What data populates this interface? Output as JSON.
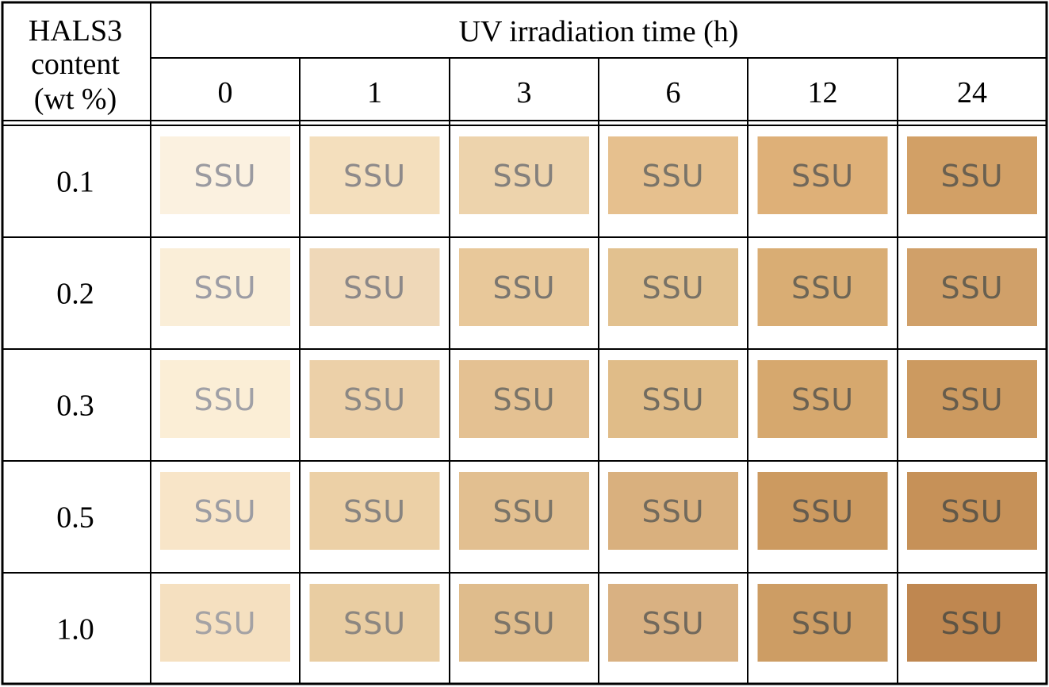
{
  "table": {
    "row_header_lines": [
      "HALS3",
      "content",
      "(wt  %)"
    ],
    "column_group_title": "UV  irradiation  time  (h)",
    "time_columns": [
      "0",
      "1",
      "3",
      "6",
      "12",
      "24"
    ],
    "rows": [
      {
        "content": "0.1",
        "samples": [
          {
            "label": "SSU",
            "color": "#fbf1e0",
            "text_color": "#9a9aa0"
          },
          {
            "label": "SSU",
            "color": "#f4dfbd",
            "text_color": "#8e8a8a"
          },
          {
            "label": "SSU",
            "color": "#edd3ac",
            "text_color": "#84807c"
          },
          {
            "label": "SSU",
            "color": "#e6c08e",
            "text_color": "#7a7468"
          },
          {
            "label": "SSU",
            "color": "#deb078",
            "text_color": "#72685a"
          },
          {
            "label": "SSU",
            "color": "#d2a066",
            "text_color": "#6a6050"
          }
        ]
      },
      {
        "content": "0.2",
        "samples": [
          {
            "label": "SSU",
            "color": "#faeed8",
            "text_color": "#9c9ca4"
          },
          {
            "label": "SSU",
            "color": "#efd8b8",
            "text_color": "#8c8888"
          },
          {
            "label": "SSU",
            "color": "#e8c89a",
            "text_color": "#7a7670"
          },
          {
            "label": "SSU",
            "color": "#e2c18f",
            "text_color": "#787266"
          },
          {
            "label": "SSU",
            "color": "#d9ad74",
            "text_color": "#6e6656"
          },
          {
            "label": "SSU",
            "color": "#d0a069",
            "text_color": "#686050"
          }
        ]
      },
      {
        "content": "0.3",
        "samples": [
          {
            "label": "SSU",
            "color": "#fbeed6",
            "text_color": "#a0a0a6"
          },
          {
            "label": "SSU",
            "color": "#ecd0a8",
            "text_color": "#8c8884"
          },
          {
            "label": "SSU",
            "color": "#e4c192",
            "text_color": "#7a7468"
          },
          {
            "label": "SSU",
            "color": "#e0bc88",
            "text_color": "#726c60"
          },
          {
            "label": "SSU",
            "color": "#d6a86e",
            "text_color": "#6c6252"
          },
          {
            "label": "SSU",
            "color": "#cc9a60",
            "text_color": "#665c4c"
          }
        ]
      },
      {
        "content": "0.5",
        "samples": [
          {
            "label": "SSU",
            "color": "#f8e5c8",
            "text_color": "#9c9ca2"
          },
          {
            "label": "SSU",
            "color": "#ecd0a6",
            "text_color": "#888480"
          },
          {
            "label": "SSU",
            "color": "#e2bf90",
            "text_color": "#7a7468"
          },
          {
            "label": "SSU",
            "color": "#d9b07e",
            "text_color": "#726a5c"
          },
          {
            "label": "SSU",
            "color": "#cc9a60",
            "text_color": "#665c4e"
          },
          {
            "label": "SSU",
            "color": "#c69158",
            "text_color": "#625848"
          }
        ]
      },
      {
        "content": "1.0",
        "samples": [
          {
            "label": "SSU",
            "color": "#f5e0c0",
            "text_color": "#a4a2a4"
          },
          {
            "label": "SSU",
            "color": "#e9cda2",
            "text_color": "#8c8680"
          },
          {
            "label": "SSU",
            "color": "#dfbc8c",
            "text_color": "#7c7468"
          },
          {
            "label": "SSU",
            "color": "#d9b182",
            "text_color": "#72695c"
          },
          {
            "label": "SSU",
            "color": "#cd9d64",
            "text_color": "#685e4e"
          },
          {
            "label": "SSU",
            "color": "#bf8750",
            "text_color": "#5e5444"
          }
        ]
      }
    ]
  }
}
